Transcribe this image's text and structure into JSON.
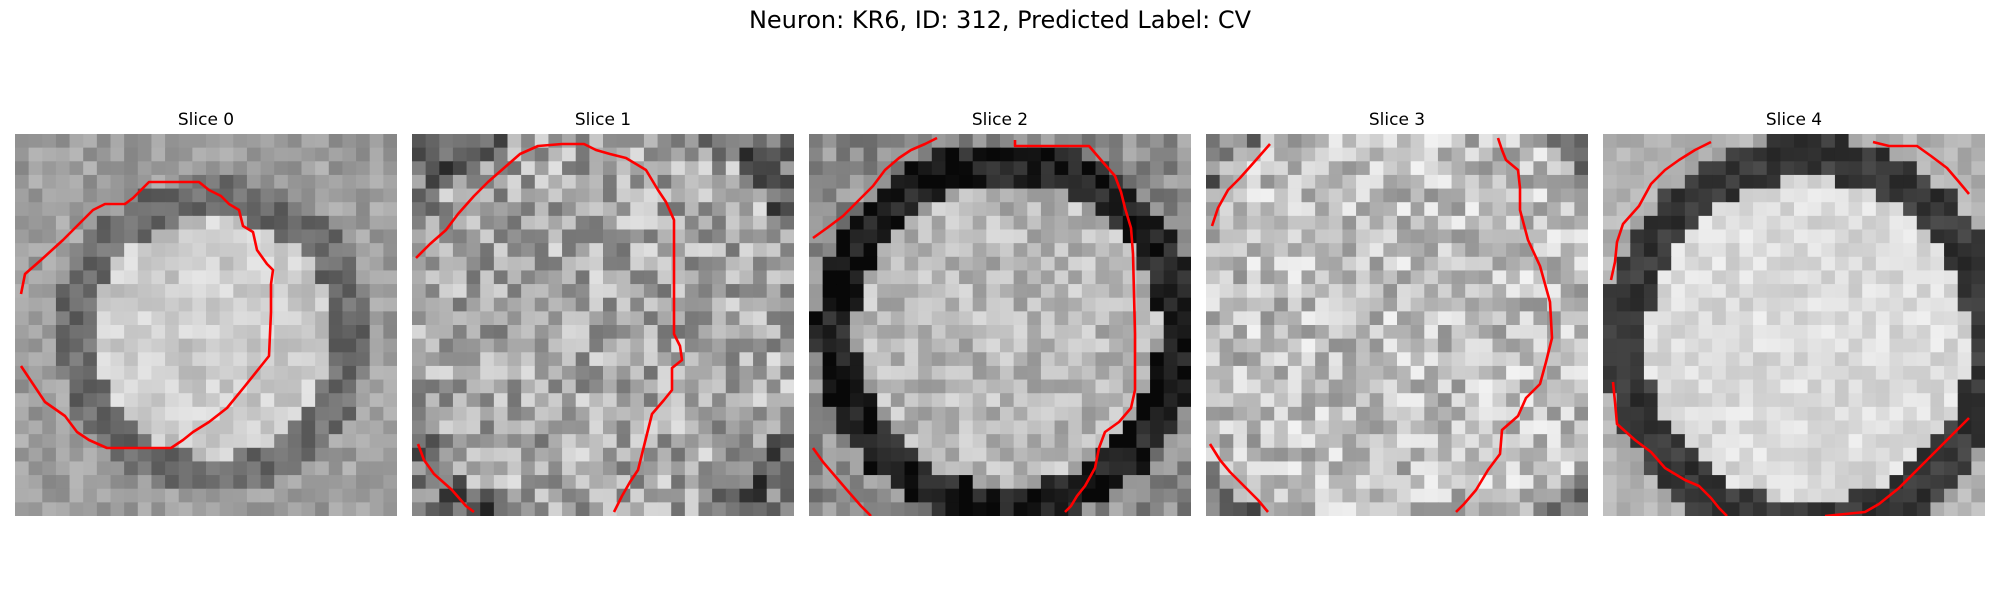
{
  "figure": {
    "title": "Neuron: KR6, ID: 312, Predicted Label: CV",
    "contour_color": "#ff0000"
  },
  "slices": [
    {
      "title": "Slice 0"
    },
    {
      "title": "Slice 1"
    },
    {
      "title": "Slice 2"
    },
    {
      "title": "Slice 3"
    },
    {
      "title": "Slice 4"
    }
  ]
}
